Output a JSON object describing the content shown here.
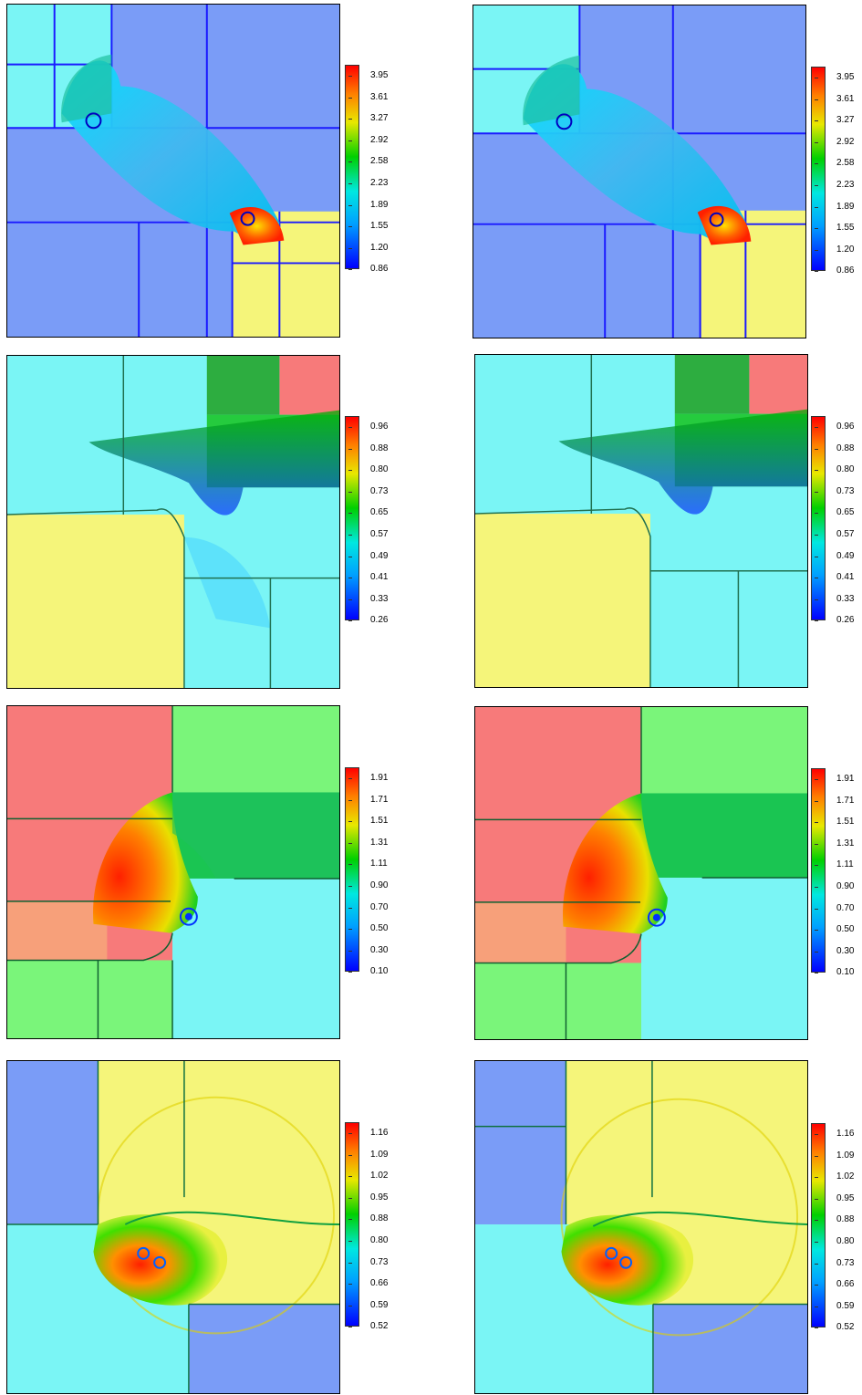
{
  "rows": [
    {
      "id": "row1",
      "colorbar": [
        "3.95",
        "3.61",
        "3.27",
        "2.92",
        "2.58",
        "2.23",
        "1.89",
        "1.55",
        "1.20",
        "0.86"
      ]
    },
    {
      "id": "row2",
      "colorbar": [
        "0.96",
        "0.88",
        "0.80",
        "0.73",
        "0.65",
        "0.57",
        "0.49",
        "0.41",
        "0.33",
        "0.26"
      ]
    },
    {
      "id": "row3",
      "colorbar": [
        "1.91",
        "1.71",
        "1.51",
        "1.31",
        "1.11",
        "0.90",
        "0.70",
        "0.50",
        "0.30",
        "0.10"
      ]
    },
    {
      "id": "row4",
      "colorbar": [
        "1.16",
        "1.09",
        "1.02",
        "0.95",
        "0.88",
        "0.80",
        "0.73",
        "0.66",
        "0.59",
        "0.52"
      ]
    }
  ],
  "palette": {
    "blue": "#7a9cf7",
    "cyan": "#7af5f5",
    "yellow": "#f5f57a",
    "red": "#f77a7a",
    "green": "#7af57a",
    "salmon": "#f7a07a",
    "dark": "#1a1aff"
  }
}
